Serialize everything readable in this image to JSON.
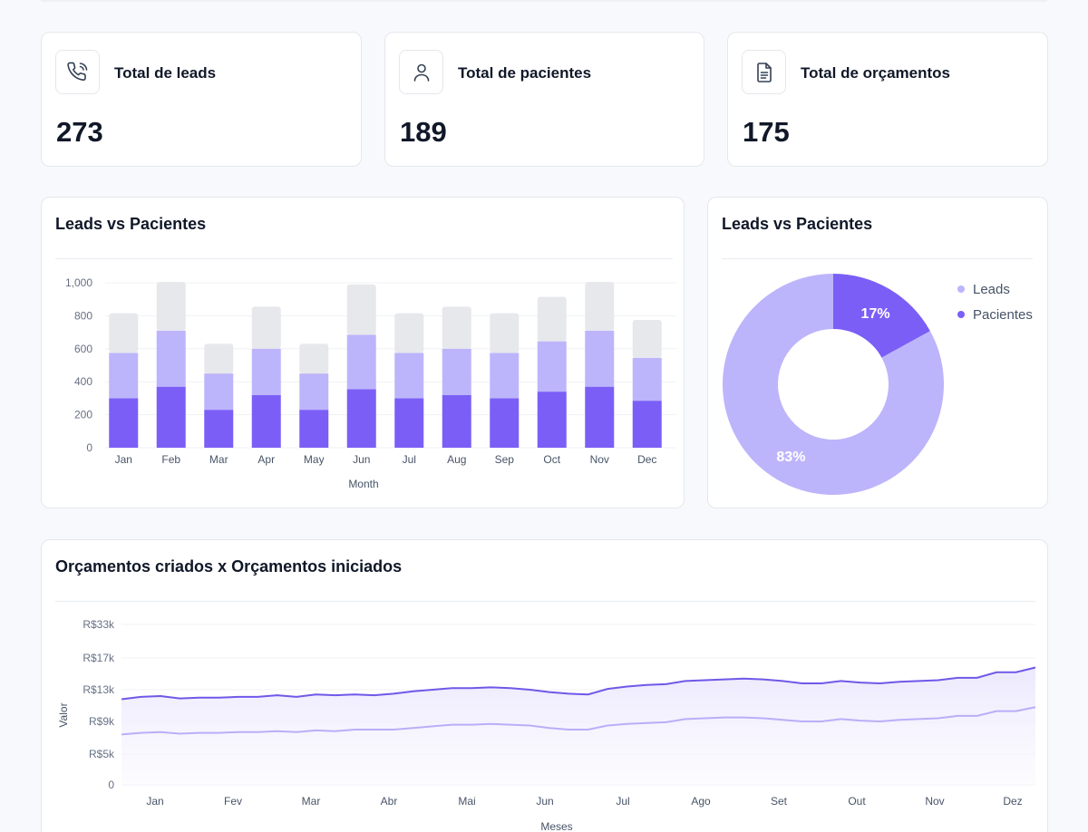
{
  "colors": {
    "light_purple": "#bcb5fb",
    "purple": "#7b5ef6",
    "gray_bar": "#e7e8ec",
    "line_dark": "#7058e8",
    "line_light": "#b9aff8"
  },
  "stats": [
    {
      "label": "Total de leads",
      "value": "273",
      "icon": "phone-icon"
    },
    {
      "label": "Total de pacientes",
      "value": "189",
      "icon": "user-icon"
    },
    {
      "label": "Total de orçamentos",
      "value": "175",
      "icon": "document-icon"
    }
  ],
  "bar_card": {
    "title": "Leads vs Pacientes"
  },
  "donut_card": {
    "title": "Leads vs Pacientes"
  },
  "line_card": {
    "title": "Orçamentos criados x Orçamentos iniciados"
  },
  "chart_data": [
    {
      "type": "bar",
      "title": "Leads vs Pacientes",
      "xlabel": "Month",
      "ylabel": "",
      "ylim": [
        0,
        1000
      ],
      "yticks": [
        "0",
        "200",
        "400",
        "600",
        "800",
        "1,000"
      ],
      "categories": [
        "Jan",
        "Feb",
        "Mar",
        "Apr",
        "May",
        "Jun",
        "Jul",
        "Aug",
        "Sep",
        "Oct",
        "Nov",
        "Dec"
      ],
      "stacked": true,
      "series": [
        {
          "name": "dark",
          "values": [
            300,
            370,
            230,
            320,
            230,
            355,
            300,
            320,
            300,
            340,
            370,
            285
          ]
        },
        {
          "name": "light",
          "values": [
            275,
            340,
            220,
            280,
            220,
            330,
            275,
            280,
            275,
            305,
            340,
            260
          ]
        },
        {
          "name": "gray",
          "values": [
            240,
            295,
            180,
            255,
            180,
            305,
            240,
            255,
            240,
            270,
            295,
            230
          ]
        }
      ]
    },
    {
      "type": "pie",
      "title": "Leads vs Pacientes",
      "labels": [
        "Leads",
        "Pacientes"
      ],
      "values": [
        83,
        17
      ],
      "display": [
        "83%",
        "17%"
      ]
    },
    {
      "type": "area",
      "title": "Orçamentos criados x Orçamentos iniciados",
      "xlabel": "Meses",
      "ylabel": "Valor",
      "xticks": [
        "Jan",
        "Fev",
        "Mar",
        "Abr",
        "Mai",
        "Jun",
        "Jul",
        "Ago",
        "Set",
        "Out",
        "Nov",
        "Dez"
      ],
      "yticks": [
        "0",
        "R$5k",
        "R$9k",
        "R$13k",
        "R$17k",
        "R$33k"
      ],
      "ylim": [
        0,
        33
      ],
      "series": [
        {
          "name": "Orçamentos criados",
          "values": [
            11.8,
            12.1,
            12.2,
            11.9,
            12.0,
            12.0,
            12.1,
            12.1,
            12.3,
            12.1,
            12.4,
            12.3,
            12.4,
            12.3,
            12.5,
            12.8,
            13.0,
            13.2,
            13.2,
            13.3,
            13.2,
            13.0,
            12.7,
            12.5,
            12.4,
            13.1,
            13.4,
            13.6,
            13.7,
            14.1,
            14.2,
            14.3,
            14.4,
            14.3,
            14.1,
            13.8,
            13.8,
            14.1,
            13.9,
            13.8,
            14.0,
            14.1,
            14.2,
            14.5,
            14.5,
            15.2,
            15.2,
            15.8
          ]
        },
        {
          "name": "Orçamentos iniciados",
          "values": [
            7.4,
            7.6,
            7.7,
            7.5,
            7.6,
            7.6,
            7.7,
            7.7,
            7.8,
            7.7,
            7.9,
            7.8,
            8.0,
            8.0,
            8.0,
            8.2,
            8.4,
            8.6,
            8.6,
            8.7,
            8.6,
            8.5,
            8.2,
            8.0,
            8.0,
            8.5,
            8.7,
            8.8,
            8.9,
            9.3,
            9.4,
            9.5,
            9.5,
            9.4,
            9.2,
            9.0,
            9.0,
            9.3,
            9.1,
            9.0,
            9.2,
            9.3,
            9.4,
            9.7,
            9.7,
            10.3,
            10.3,
            10.8
          ]
        }
      ]
    }
  ]
}
